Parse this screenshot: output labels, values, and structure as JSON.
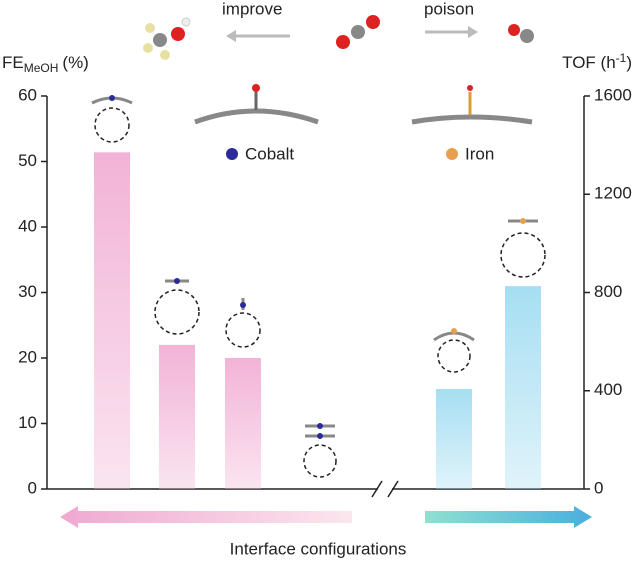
{
  "chart_data": {
    "type": "bar",
    "ylabel": {
      "main": "FE",
      "sub": "MeOH",
      "unit": "(%)"
    },
    "y2label": {
      "main": "TOF (h",
      "sup": "-1",
      "end": ")"
    },
    "xlabel": "Interface configurations",
    "annotations": [
      "improve",
      "poison"
    ],
    "categories": [
      null,
      null,
      null,
      null,
      null,
      null
    ],
    "series": [
      {
        "name": "Cobalt",
        "color": "#f2b3d6",
        "values": [
          51.4,
          22,
          20,
          null,
          null,
          null
        ]
      },
      {
        "name": "Iron",
        "color": "#a6def2",
        "axis": "y2",
        "values": [
          null,
          null,
          null,
          null,
          407,
          826
        ]
      }
    ],
    "ylim": [
      0,
      60
    ],
    "yticks": [
      0,
      10,
      20,
      30,
      40,
      50,
      60
    ],
    "y2lim": [
      0,
      1600
    ],
    "y2ticks": [
      0,
      400,
      800,
      1200,
      1600
    ]
  }
}
